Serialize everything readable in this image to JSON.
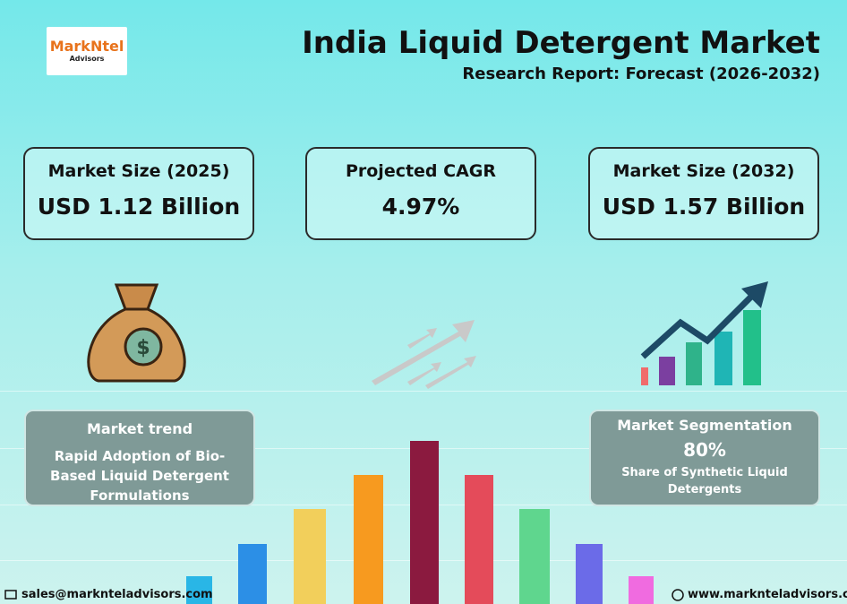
{
  "logo": {
    "name": "MarkNtel",
    "sub": "Advisors"
  },
  "header": {
    "title": "India Liquid Detergent Market",
    "subtitle": "Research Report: Forecast (2026-2032)"
  },
  "cards": [
    {
      "label": "Market Size (2025)",
      "value": "USD 1.12 Billion"
    },
    {
      "label": "Projected CAGR",
      "value": "4.97%"
    },
    {
      "label": "Market Size (2032)",
      "value": "USD 1.57 Billion"
    }
  ],
  "trend": {
    "heading": "Market trend",
    "text": "Rapid Adoption of Bio-Based Liquid Detergent Formulations"
  },
  "segmentation": {
    "heading": "Market Segmentation",
    "value": "80%",
    "text": "Share of Synthetic Liquid Detergents"
  },
  "footer": {
    "email": "sales@marknteladvisors.com",
    "website": "www.marknteladvisors.com"
  }
}
